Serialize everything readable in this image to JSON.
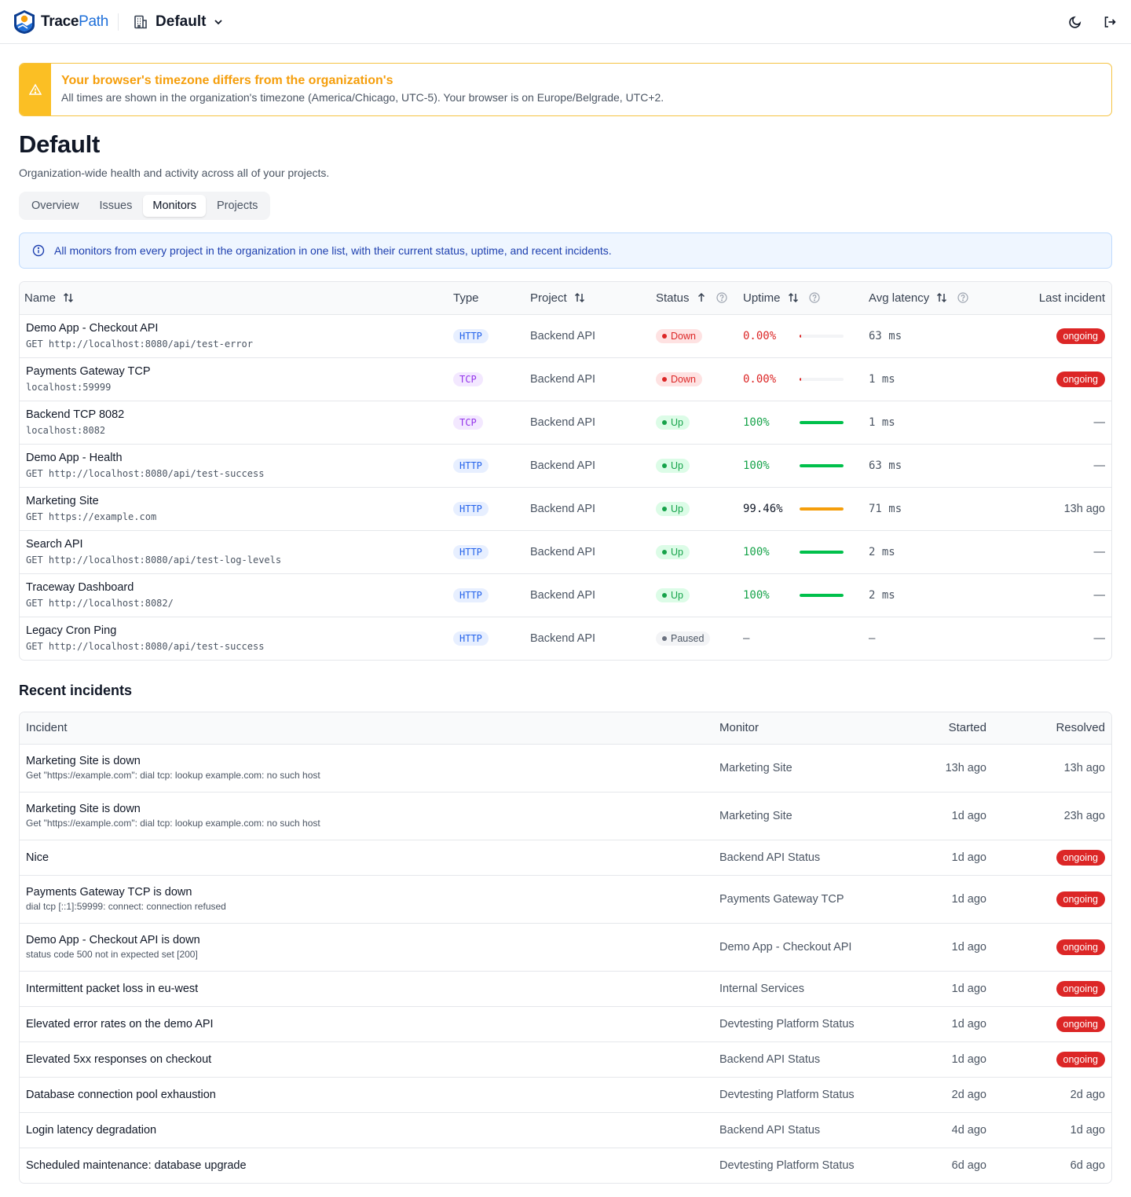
{
  "app": {
    "brand_trace": "Trace",
    "brand_path": "Path",
    "org_name": "Default"
  },
  "banner": {
    "title": "Your browser's timezone differs from the organization's",
    "text": "All times are shown in the organization's timezone (America/Chicago, UTC-5). Your browser is on Europe/Belgrade, UTC+2."
  },
  "page": {
    "title": "Default",
    "subtitle": "Organization-wide health and activity across all of your projects."
  },
  "tabs": [
    {
      "label": "Overview",
      "active": false
    },
    {
      "label": "Issues",
      "active": false
    },
    {
      "label": "Monitors",
      "active": true
    },
    {
      "label": "Projects",
      "active": false
    }
  ],
  "info": {
    "text": "All monitors from every project in the organization in one list, with their current status, uptime, and recent incidents."
  },
  "monitors": {
    "columns": {
      "name": "Name",
      "type": "Type",
      "project": "Project",
      "status": "Status",
      "uptime": "Uptime",
      "latency": "Avg latency",
      "last_incident": "Last incident"
    },
    "rows": [
      {
        "name": "Demo App - Checkout API",
        "target": "GET http://localhost:8080/api/test-error",
        "type": "HTTP",
        "project": "Backend API",
        "status": "Down",
        "uptime": "0.00%",
        "uptime_fraction": 0.0,
        "latency": "63 ms",
        "last_incident": "ongoing"
      },
      {
        "name": "Payments Gateway TCP",
        "target": "localhost:59999",
        "type": "TCP",
        "project": "Backend API",
        "status": "Down",
        "uptime": "0.00%",
        "uptime_fraction": 0.0,
        "latency": "1 ms",
        "last_incident": "ongoing"
      },
      {
        "name": "Backend TCP 8082",
        "target": "localhost:8082",
        "type": "TCP",
        "project": "Backend API",
        "status": "Up",
        "uptime": "100%",
        "uptime_fraction": 1.0,
        "latency": "1 ms",
        "last_incident": "—"
      },
      {
        "name": "Demo App - Health",
        "target": "GET http://localhost:8080/api/test-success",
        "type": "HTTP",
        "project": "Backend API",
        "status": "Up",
        "uptime": "100%",
        "uptime_fraction": 1.0,
        "latency": "63 ms",
        "last_incident": "—"
      },
      {
        "name": "Marketing Site",
        "target": "GET https://example.com",
        "type": "HTTP",
        "project": "Backend API",
        "status": "Up",
        "uptime": "99.46%",
        "uptime_fraction": 0.9946,
        "latency": "71 ms",
        "last_incident": "13h ago"
      },
      {
        "name": "Search API",
        "target": "GET http://localhost:8080/api/test-log-levels",
        "type": "HTTP",
        "project": "Backend API",
        "status": "Up",
        "uptime": "100%",
        "uptime_fraction": 1.0,
        "latency": "2 ms",
        "last_incident": "—"
      },
      {
        "name": "Traceway Dashboard",
        "target": "GET http://localhost:8082/",
        "type": "HTTP",
        "project": "Backend API",
        "status": "Up",
        "uptime": "100%",
        "uptime_fraction": 1.0,
        "latency": "2 ms",
        "last_incident": "—"
      },
      {
        "name": "Legacy Cron Ping",
        "target": "GET http://localhost:8080/api/test-success",
        "type": "HTTP",
        "project": "Backend API",
        "status": "Paused",
        "uptime": "—",
        "uptime_fraction": null,
        "latency": "–",
        "last_incident": "—"
      }
    ]
  },
  "incidents": {
    "title": "Recent incidents",
    "columns": {
      "incident": "Incident",
      "monitor": "Monitor",
      "started": "Started",
      "resolved": "Resolved"
    },
    "rows": [
      {
        "title": "Marketing Site is down",
        "detail": "Get \"https://example.com\": dial tcp: lookup example.com: no such host",
        "monitor": "Marketing Site",
        "started": "13h ago",
        "resolved": "13h ago"
      },
      {
        "title": "Marketing Site is down",
        "detail": "Get \"https://example.com\": dial tcp: lookup example.com: no such host",
        "monitor": "Marketing Site",
        "started": "1d ago",
        "resolved": "23h ago"
      },
      {
        "title": "Nice",
        "detail": "",
        "monitor": "Backend API Status",
        "started": "1d ago",
        "resolved": "ongoing"
      },
      {
        "title": "Payments Gateway TCP is down",
        "detail": "dial tcp [::1]:59999: connect: connection refused",
        "monitor": "Payments Gateway TCP",
        "started": "1d ago",
        "resolved": "ongoing"
      },
      {
        "title": "Demo App - Checkout API is down",
        "detail": "status code 500 not in expected set [200]",
        "monitor": "Demo App - Checkout API",
        "started": "1d ago",
        "resolved": "ongoing"
      },
      {
        "title": "Intermittent packet loss in eu-west",
        "detail": "",
        "monitor": "Internal Services",
        "started": "1d ago",
        "resolved": "ongoing"
      },
      {
        "title": "Elevated error rates on the demo API",
        "detail": "",
        "monitor": "Devtesting Platform Status",
        "started": "1d ago",
        "resolved": "ongoing"
      },
      {
        "title": "Elevated 5xx responses on checkout",
        "detail": "",
        "monitor": "Backend API Status",
        "started": "1d ago",
        "resolved": "ongoing"
      },
      {
        "title": "Database connection pool exhaustion",
        "detail": "",
        "monitor": "Devtesting Platform Status",
        "started": "2d ago",
        "resolved": "2d ago"
      },
      {
        "title": "Login latency degradation",
        "detail": "",
        "monitor": "Backend API Status",
        "started": "4d ago",
        "resolved": "1d ago"
      },
      {
        "title": "Scheduled maintenance: database upgrade",
        "detail": "",
        "monitor": "Devtesting Platform Status",
        "started": "6d ago",
        "resolved": "6d ago"
      }
    ]
  },
  "colors": {
    "accent": "#1e6fd9",
    "warning": "#f59e0b",
    "down": "#dc2626",
    "up": "#16a34a",
    "degraded": "#f59e0b",
    "info": "#1e40af"
  },
  "icons": {
    "logo": "tracepath-logo",
    "org": "building-icon",
    "chevron": "chevron-down-icon",
    "theme": "moon-icon",
    "logout": "logout-icon",
    "warning": "warning-triangle-icon",
    "info": "info-circle-icon",
    "sort": "sort-icon",
    "help": "help-circle-icon"
  }
}
